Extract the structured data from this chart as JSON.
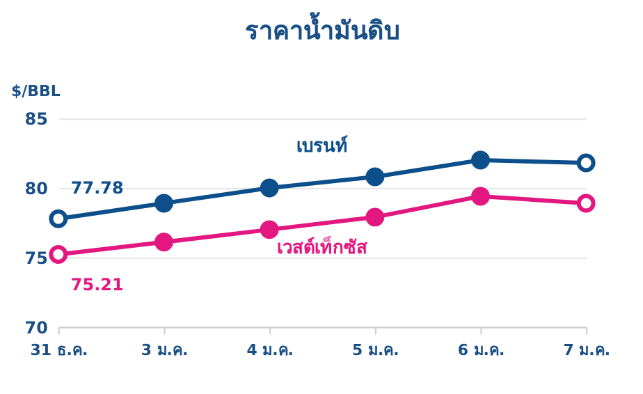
{
  "chart_data": {
    "type": "line",
    "title": "ราคาน้ำมันดิบ",
    "ylabel": "$/BBL",
    "categories": [
      "31 ธ.ค.",
      "3 ม.ค.",
      "4 ม.ค.",
      "5 ม.ค.",
      "6 ม.ค.",
      "7 ม.ค."
    ],
    "series": [
      {
        "name": "เบรนท์",
        "color": "#0d4f8b",
        "values": [
          77.78,
          78.9,
          80.0,
          80.8,
          82.0,
          81.8
        ],
        "value_labels": [
          "77.78",
          null,
          null,
          null,
          null,
          null
        ]
      },
      {
        "name": "เวสต์เท็กซัส",
        "color": "#e2177f",
        "values": [
          75.21,
          76.1,
          77.0,
          77.9,
          79.4,
          78.9
        ],
        "value_labels": [
          "75.21",
          null,
          null,
          null,
          null,
          null
        ]
      }
    ],
    "ylim": [
      70,
      85
    ],
    "yticks": [
      70,
      75,
      80,
      85
    ],
    "grid": "y",
    "legend": false,
    "marker": "circle",
    "line_style": "solid"
  }
}
